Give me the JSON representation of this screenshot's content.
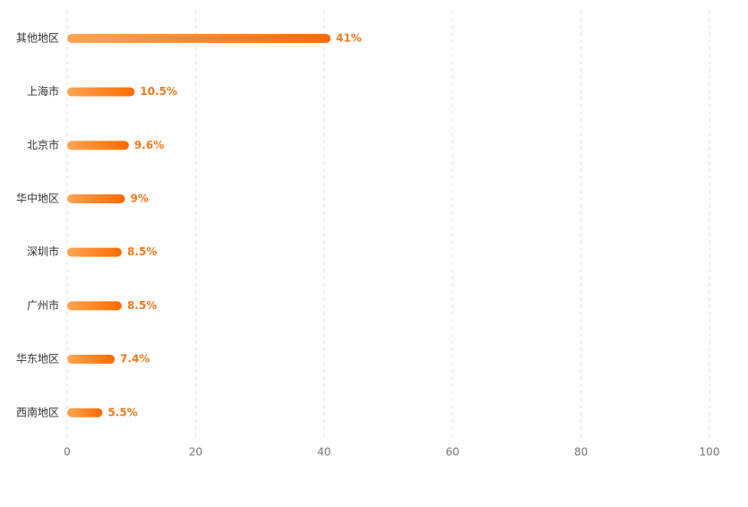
{
  "chart_data": {
    "type": "bar",
    "orientation": "horizontal",
    "categories": [
      "其他地区",
      "上海市",
      "北京市",
      "华中地区",
      "深圳市",
      "广州市",
      "华东地区",
      "西南地区"
    ],
    "values": [
      41,
      10.5,
      9.6,
      9,
      8.5,
      8.5,
      7.4,
      5.5
    ],
    "value_labels": [
      "41%",
      "10.5%",
      "9.6%",
      "9%",
      "8.5%",
      "8.5%",
      "7.4%",
      "5.5%"
    ],
    "gradient": [
      "#ffa552",
      "#ff6a00"
    ],
    "label_color": "#f07a1e",
    "xlim": [
      0,
      100
    ],
    "xticks": [
      0,
      20,
      40,
      60,
      80,
      100
    ],
    "grid": true
  }
}
